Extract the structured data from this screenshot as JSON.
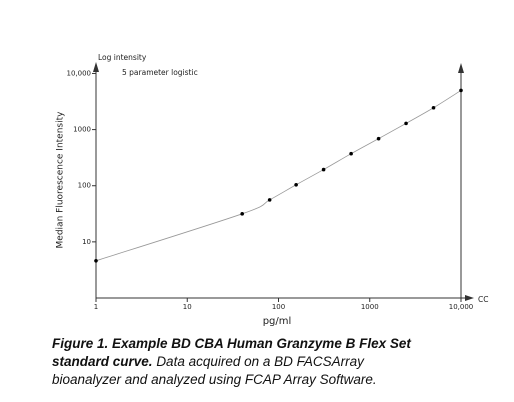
{
  "chart_data": {
    "type": "scatter",
    "y_axis_title": "Log intensity",
    "fit_label": "5 parameter logistic",
    "ylabel": "Median Fluorescence Intensity",
    "xlabel": "pg/ml",
    "x_axis_end_label": "CC",
    "x": [
      1,
      40,
      80,
      156,
      312,
      625,
      1250,
      2500,
      5000,
      10000
    ],
    "series": [
      {
        "color": "#000000",
        "values": [
          4.6,
          31.6,
          56,
          104,
          194,
          372,
          690,
          1290,
          2450,
          4990
        ]
      }
    ],
    "fit_color": "#999999",
    "xscale": "log",
    "yscale": "log",
    "xlim": [
      1,
      10000
    ],
    "ylim": [
      1,
      16000
    ],
    "xticks": [
      1,
      10,
      100,
      1000,
      {
        "value": 10000,
        "label": "10,000"
      }
    ],
    "yticks": [
      10,
      100,
      1000,
      {
        "value": 10000,
        "label": "10,000"
      }
    ],
    "caption_title": "Figure 1. Example BD CBA Human Granzyme B Flex Set standard curve.",
    "caption_text": "Data acquired on a BD FACSArray bioanalyzer and analyzed using FCAP Array Software."
  }
}
